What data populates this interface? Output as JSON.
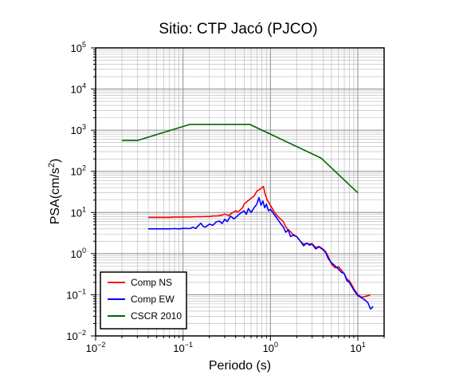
{
  "chart_data": {
    "type": "line",
    "title": "Sitio: CTP Jacó (PJCO)",
    "xlabel": "Periodo (s)",
    "ylabel": "PSA(cm/s",
    "ylabel_sup": "2",
    "ylabel_end": ")",
    "x_scale": "log",
    "y_scale": "log",
    "xlim": [
      0.01,
      20
    ],
    "ylim": [
      0.01,
      100000
    ],
    "grid": true,
    "legend_position": "bottom-left",
    "x_ticks": [
      {
        "base": "10",
        "exp": "−2",
        "value": 0.01
      },
      {
        "base": "10",
        "exp": "−1",
        "value": 0.1
      },
      {
        "base": "10",
        "exp": "0",
        "value": 1
      },
      {
        "base": "10",
        "exp": "1",
        "value": 10
      }
    ],
    "y_ticks": [
      {
        "base": "10",
        "exp": "−2",
        "value": 0.01
      },
      {
        "base": "10",
        "exp": "−1",
        "value": 0.1
      },
      {
        "base": "10",
        "exp": "0",
        "value": 1
      },
      {
        "base": "10",
        "exp": "1",
        "value": 10
      },
      {
        "base": "10",
        "exp": "2",
        "value": 100
      },
      {
        "base": "10",
        "exp": "3",
        "value": 1000
      },
      {
        "base": "10",
        "exp": "4",
        "value": 10000
      },
      {
        "base": "10",
        "exp": "5",
        "value": 100000
      }
    ],
    "series": [
      {
        "name": "Comp NS",
        "color": "#ff0000",
        "points": [
          [
            0.04,
            7.6
          ],
          [
            0.05,
            7.6
          ],
          [
            0.06,
            7.6
          ],
          [
            0.07,
            7.6
          ],
          [
            0.08,
            7.7
          ],
          [
            0.09,
            7.7
          ],
          [
            0.1,
            7.8
          ],
          [
            0.12,
            7.8
          ],
          [
            0.14,
            7.9
          ],
          [
            0.16,
            7.9
          ],
          [
            0.18,
            8.0
          ],
          [
            0.2,
            8.0
          ],
          [
            0.22,
            8.2
          ],
          [
            0.25,
            8.3
          ],
          [
            0.28,
            8.6
          ],
          [
            0.3,
            9.2
          ],
          [
            0.33,
            8.4
          ],
          [
            0.36,
            9.6
          ],
          [
            0.4,
            11.0
          ],
          [
            0.42,
            10.2
          ],
          [
            0.45,
            11.5
          ],
          [
            0.48,
            13.0
          ],
          [
            0.5,
            16.0
          ],
          [
            0.55,
            19.0
          ],
          [
            0.6,
            22.0
          ],
          [
            0.65,
            25.0
          ],
          [
            0.7,
            33.0
          ],
          [
            0.75,
            36.0
          ],
          [
            0.8,
            40.0
          ],
          [
            0.83,
            43.0
          ],
          [
            0.87,
            28.0
          ],
          [
            0.92,
            20.0
          ],
          [
            1.0,
            15.0
          ],
          [
            1.1,
            10.5
          ],
          [
            1.2,
            8.2
          ],
          [
            1.4,
            6.0
          ],
          [
            1.5,
            4.5
          ],
          [
            1.6,
            3.8
          ],
          [
            1.7,
            3.4
          ],
          [
            1.8,
            3.0
          ],
          [
            2.0,
            2.6
          ],
          [
            2.2,
            2.0
          ],
          [
            2.4,
            1.7
          ],
          [
            2.6,
            1.8
          ],
          [
            2.8,
            1.7
          ],
          [
            3.0,
            1.75
          ],
          [
            3.3,
            1.4
          ],
          [
            3.6,
            1.5
          ],
          [
            4.0,
            1.3
          ],
          [
            4.3,
            1.1
          ],
          [
            4.6,
            0.85
          ],
          [
            5.0,
            0.55
          ],
          [
            5.5,
            0.45
          ],
          [
            6.0,
            0.48
          ],
          [
            6.5,
            0.4
          ],
          [
            7.0,
            0.32
          ],
          [
            7.5,
            0.24
          ],
          [
            8.0,
            0.22
          ],
          [
            9.0,
            0.14
          ],
          [
            10.0,
            0.1
          ],
          [
            11.0,
            0.088
          ],
          [
            12.0,
            0.09
          ],
          [
            13.0,
            0.095
          ],
          [
            14.0,
            0.1
          ]
        ]
      },
      {
        "name": "Comp EW",
        "color": "#0000ff",
        "points": [
          [
            0.04,
            4.0
          ],
          [
            0.05,
            4.0
          ],
          [
            0.06,
            4.0
          ],
          [
            0.07,
            4.0
          ],
          [
            0.08,
            4.05
          ],
          [
            0.09,
            4.0
          ],
          [
            0.1,
            4.1
          ],
          [
            0.11,
            4.1
          ],
          [
            0.12,
            4.05
          ],
          [
            0.13,
            4.4
          ],
          [
            0.14,
            4.1
          ],
          [
            0.15,
            4.8
          ],
          [
            0.16,
            5.5
          ],
          [
            0.17,
            4.6
          ],
          [
            0.18,
            4.4
          ],
          [
            0.2,
            5.2
          ],
          [
            0.22,
            4.9
          ],
          [
            0.24,
            5.9
          ],
          [
            0.26,
            6.2
          ],
          [
            0.28,
            5.4
          ],
          [
            0.3,
            6.8
          ],
          [
            0.32,
            6.0
          ],
          [
            0.35,
            8.2
          ],
          [
            0.38,
            7.0
          ],
          [
            0.4,
            7.5
          ],
          [
            0.45,
            9.5
          ],
          [
            0.5,
            11.0
          ],
          [
            0.53,
            9.0
          ],
          [
            0.56,
            12.5
          ],
          [
            0.6,
            10.0
          ],
          [
            0.65,
            13.0
          ],
          [
            0.7,
            16.0
          ],
          [
            0.74,
            23.0
          ],
          [
            0.78,
            15.0
          ],
          [
            0.82,
            19.0
          ],
          [
            0.86,
            13.0
          ],
          [
            0.9,
            16.0
          ],
          [
            0.95,
            11.0
          ],
          [
            1.0,
            12.0
          ],
          [
            1.1,
            9.0
          ],
          [
            1.2,
            7.0
          ],
          [
            1.3,
            5.5
          ],
          [
            1.4,
            4.5
          ],
          [
            1.5,
            3.3
          ],
          [
            1.6,
            3.8
          ],
          [
            1.7,
            2.6
          ],
          [
            1.8,
            2.8
          ],
          [
            2.0,
            2.6
          ],
          [
            2.2,
            2.0
          ],
          [
            2.4,
            1.55
          ],
          [
            2.6,
            1.8
          ],
          [
            2.8,
            1.6
          ],
          [
            3.0,
            1.7
          ],
          [
            3.3,
            1.3
          ],
          [
            3.6,
            1.45
          ],
          [
            4.0,
            1.25
          ],
          [
            4.3,
            1.05
          ],
          [
            4.6,
            0.75
          ],
          [
            5.0,
            0.6
          ],
          [
            5.5,
            0.5
          ],
          [
            6.0,
            0.42
          ],
          [
            6.5,
            0.35
          ],
          [
            7.0,
            0.33
          ],
          [
            7.5,
            0.22
          ],
          [
            8.0,
            0.2
          ],
          [
            9.0,
            0.13
          ],
          [
            10.0,
            0.095
          ],
          [
            11.0,
            0.085
          ],
          [
            12.0,
            0.075
          ],
          [
            13.0,
            0.065
          ],
          [
            14.0,
            0.045
          ],
          [
            15.0,
            0.052
          ]
        ]
      },
      {
        "name": "CSCR 2010",
        "color": "#006600",
        "points": [
          [
            0.02,
            560
          ],
          [
            0.03,
            560
          ],
          [
            0.12,
            1380
          ],
          [
            0.58,
            1380
          ],
          [
            3.8,
            210
          ],
          [
            10.0,
            30
          ]
        ]
      }
    ]
  }
}
